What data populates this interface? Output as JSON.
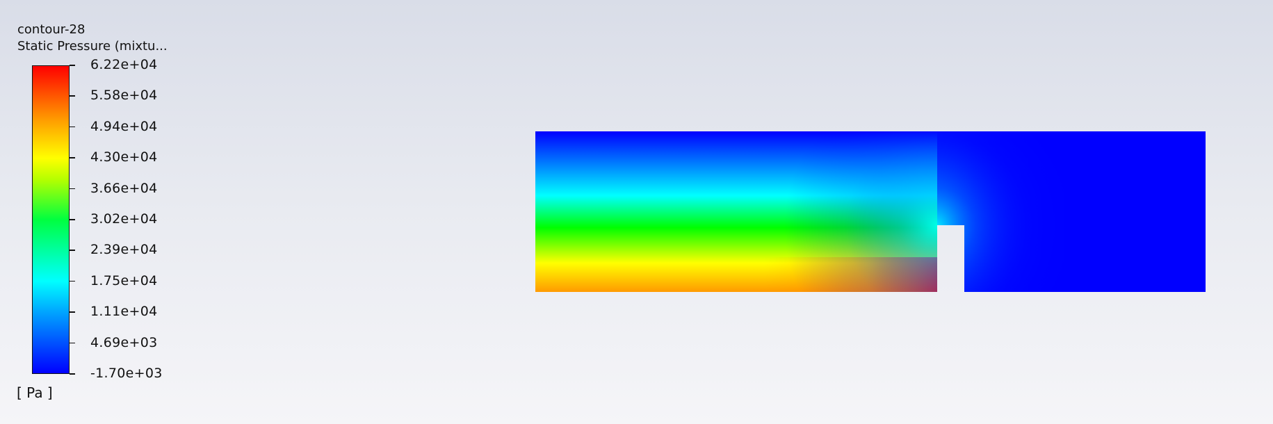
{
  "chart_data": {
    "type": "heatmap",
    "title": "contour-28",
    "subtitle": "Static Pressure (mixtu...",
    "unit": "[ Pa ]",
    "range": [
      -1700,
      62200
    ],
    "tick_labels": [
      "6.22e+04",
      "5.58e+04",
      "4.94e+04",
      "4.30e+04",
      "3.66e+04",
      "3.02e+04",
      "2.39e+04",
      "1.75e+04",
      "1.11e+04",
      "4.69e+03",
      "-1.70e+03"
    ],
    "colormap": [
      "#0000ff",
      "#00a5ff",
      "#00ffff",
      "#00ff40",
      "#b4ff00",
      "#ffff00",
      "#ffa000",
      "#ff0000"
    ]
  }
}
